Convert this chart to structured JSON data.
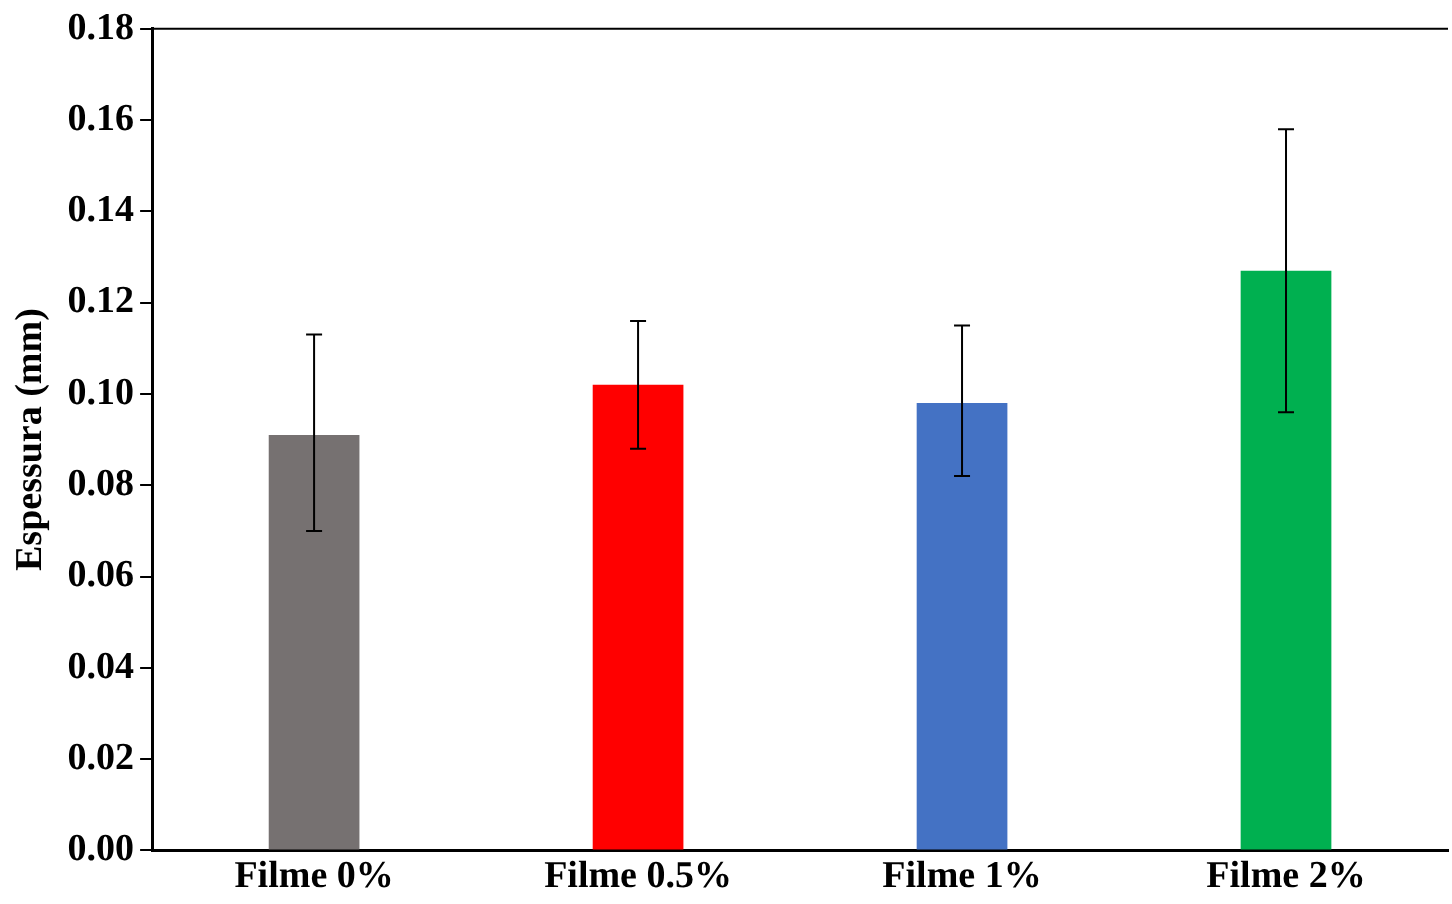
{
  "chart_data": {
    "type": "bar",
    "ylabel": "Espessura (mm)",
    "categories": [
      "Filme 0%",
      "Filme 0.5%",
      "Filme 1%",
      "Filme 2%"
    ],
    "values": [
      0.091,
      0.102,
      0.098,
      0.127
    ],
    "colors": [
      "#767171",
      "#ff0000",
      "#4472c4",
      "#00b050"
    ],
    "errors": [
      [
        0.07,
        0.113
      ],
      [
        0.088,
        0.116
      ],
      [
        0.082,
        0.115
      ],
      [
        0.096,
        0.158
      ]
    ],
    "ylim": [
      0,
      0.18
    ],
    "yticks": [
      {
        "value": 0,
        "label": "0.00"
      },
      0.02,
      0.04,
      0.06,
      0.08,
      {
        "value": 0.1,
        "label": "0.10"
      },
      0.12,
      0.14,
      0.16,
      0.18
    ],
    "grid": false,
    "legend": false
  }
}
